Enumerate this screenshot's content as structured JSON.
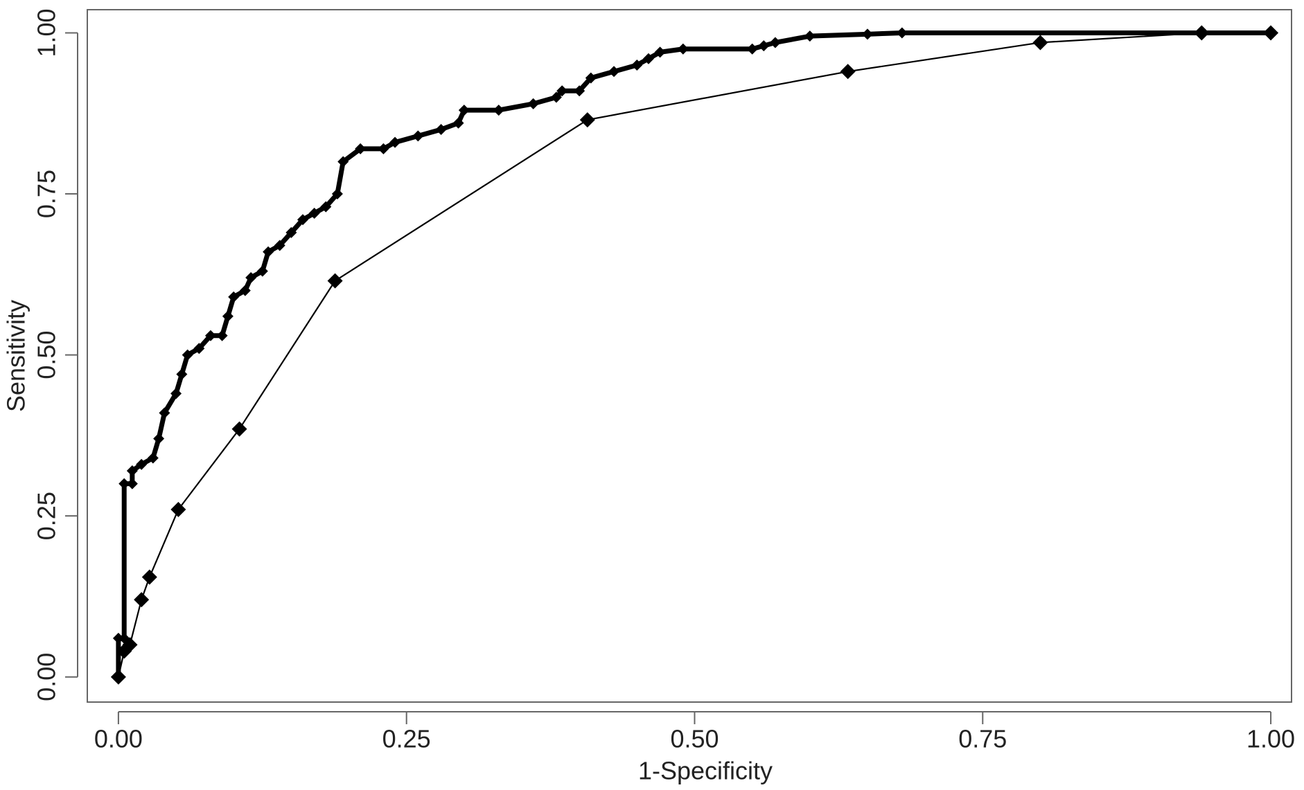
{
  "chart_data": {
    "type": "line",
    "xlabel": "1-Specificity",
    "ylabel": "Sensitivity",
    "xlim": [
      -0.027,
      1.018
    ],
    "ylim": [
      -0.039,
      1.036
    ],
    "xticks": [
      {
        "value": 0,
        "label": "0.00"
      },
      {
        "value": 0.25,
        "label": "0.25"
      },
      {
        "value": 0.5,
        "label": "0.50"
      },
      {
        "value": 0.75,
        "label": "0.75"
      },
      {
        "value": 1,
        "label": "1.00"
      }
    ],
    "yticks": [
      {
        "value": 0,
        "label": "0.00"
      },
      {
        "value": 0.25,
        "label": "0.25"
      },
      {
        "value": 0.5,
        "label": "0.50"
      },
      {
        "value": 0.75,
        "label": "0.75"
      },
      {
        "value": 1,
        "label": "1.00"
      }
    ],
    "grid": false,
    "series": [
      {
        "color": "#000000",
        "x": [
          0,
          0,
          0.005,
          0.005,
          0.012,
          0.012,
          0.02,
          0.03,
          0.035,
          0.04,
          0.05,
          0.055,
          0.06,
          0.07,
          0.08,
          0.09,
          0.095,
          0.1,
          0.11,
          0.115,
          0.125,
          0.13,
          0.14,
          0.15,
          0.16,
          0.17,
          0.18,
          0.19,
          0.195,
          0.21,
          0.23,
          0.24,
          0.26,
          0.28,
          0.295,
          0.3,
          0.33,
          0.36,
          0.38,
          0.385,
          0.4,
          0.41,
          0.43,
          0.45,
          0.46,
          0.47,
          0.49,
          0.55,
          0.56,
          0.57,
          0.6,
          0.65,
          0.68,
          1.0
        ],
        "values": [
          0,
          0.06,
          0.06,
          0.3,
          0.3,
          0.32,
          0.33,
          0.34,
          0.37,
          0.41,
          0.44,
          0.47,
          0.5,
          0.51,
          0.53,
          0.53,
          0.56,
          0.59,
          0.6,
          0.62,
          0.63,
          0.66,
          0.67,
          0.69,
          0.71,
          0.72,
          0.73,
          0.75,
          0.8,
          0.82,
          0.82,
          0.83,
          0.84,
          0.85,
          0.86,
          0.88,
          0.88,
          0.89,
          0.9,
          0.91,
          0.91,
          0.93,
          0.94,
          0.95,
          0.96,
          0.97,
          0.975,
          0.975,
          0.98,
          0.985,
          0.995,
          0.998,
          1.0,
          1.0
        ]
      },
      {
        "color": "#000000",
        "x": [
          0,
          0.005,
          0.01,
          0.02,
          0.027,
          0.052,
          0.105,
          0.188,
          0.407,
          0.633,
          0.8,
          0.94,
          1.0
        ],
        "values": [
          0,
          0.04,
          0.05,
          0.12,
          0.155,
          0.26,
          0.385,
          0.615,
          0.865,
          0.94,
          0.985,
          1.0,
          1.0
        ]
      }
    ]
  }
}
